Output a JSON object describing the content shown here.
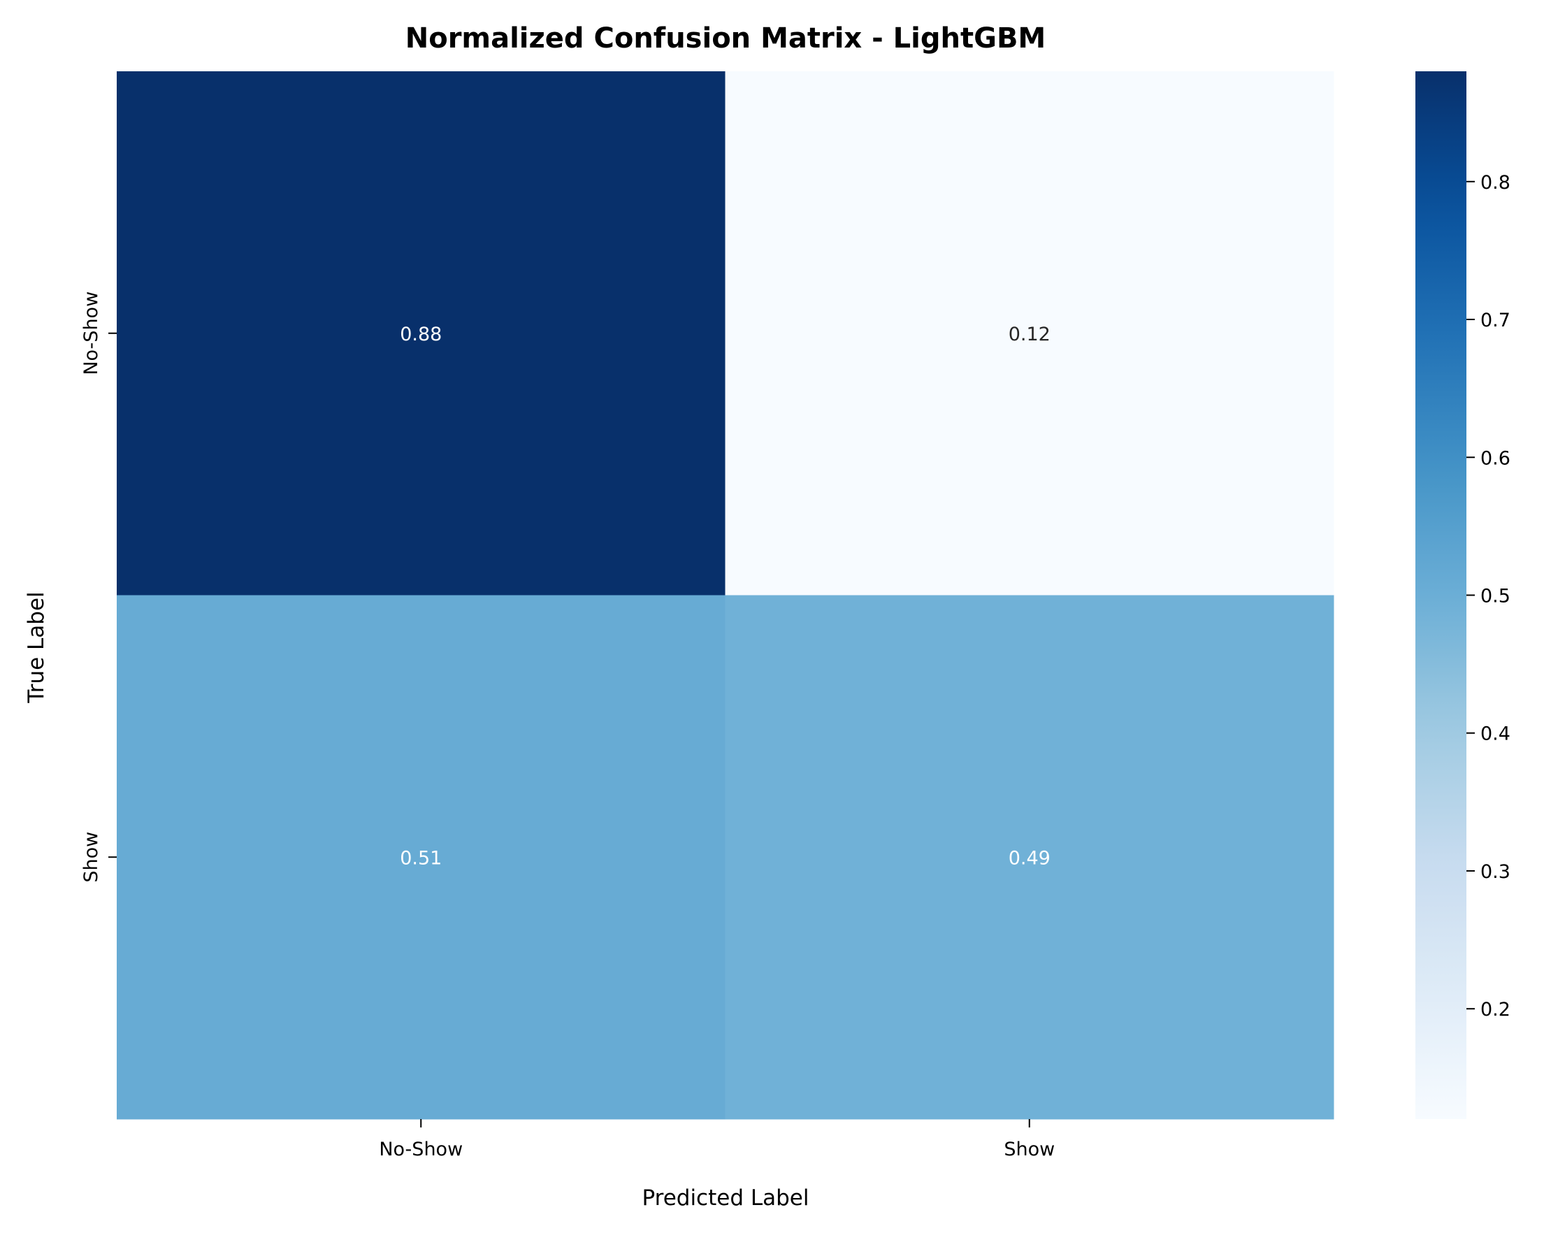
{
  "chart_data": {
    "type": "heatmap",
    "title": "Normalized Confusion Matrix - LightGBM",
    "xlabel": "Predicted Label",
    "ylabel": "True Label",
    "x_categories": [
      "No-Show",
      "Show"
    ],
    "y_categories": [
      "No-Show",
      "Show"
    ],
    "matrix": [
      [
        0.88,
        0.12
      ],
      [
        0.51,
        0.49
      ]
    ],
    "cell_labels": [
      [
        "0.88",
        "0.12"
      ],
      [
        "0.51",
        "0.49"
      ]
    ],
    "colormap": "Blues",
    "colorbar": {
      "min": 0.12,
      "max": 0.88,
      "ticks": [
        0.2,
        0.3,
        0.4,
        0.5,
        0.6,
        0.7,
        0.8
      ],
      "tick_labels": [
        "0.2",
        "0.3",
        "0.4",
        "0.5",
        "0.6",
        "0.7",
        "0.8"
      ]
    },
    "grid": false
  }
}
